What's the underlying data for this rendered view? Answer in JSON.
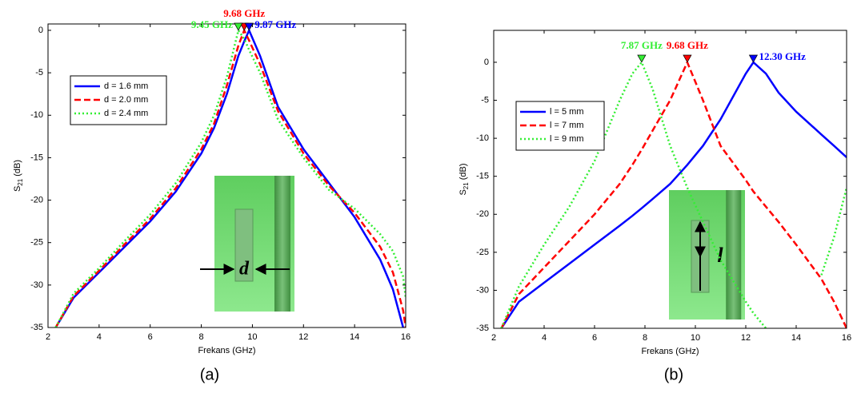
{
  "chart_data": [
    {
      "type": "line",
      "caption": "(a)",
      "xlabel": "Frekans (GHz)",
      "ylabel": "S21 (dB)",
      "x": [
        2.3,
        3,
        4,
        5,
        6,
        7,
        8,
        8.5,
        9,
        9.45,
        9.68,
        9.87,
        10.3,
        11,
        12,
        13,
        14,
        15,
        15.5,
        15.9,
        16
      ],
      "series": [
        {
          "name": "d = 1.6 mm",
          "color": "#0000ff",
          "style": "solid",
          "values": [
            -35,
            -31.5,
            -28.5,
            -25.5,
            -22.5,
            -19,
            -14.5,
            -11.5,
            -7.5,
            -3,
            -1.3,
            0,
            -3,
            -9,
            -14,
            -18,
            -22,
            -27,
            -30.5,
            -35,
            null
          ]
        },
        {
          "name": "d = 2.0 mm",
          "color": "#ff0000",
          "style": "dashed",
          "values": [
            -35,
            -31.3,
            -28.3,
            -25.2,
            -22.2,
            -18.6,
            -14,
            -11,
            -6.5,
            -1.8,
            0,
            -1.2,
            -4,
            -9.5,
            -14.5,
            -18.3,
            -21.5,
            -25.5,
            -28.5,
            -33,
            -35
          ]
        },
        {
          "name": "d = 2.4 mm",
          "color": "#33ee33",
          "style": "dotted",
          "values": [
            -35,
            -31,
            -28,
            -24.8,
            -21.7,
            -18,
            -13.2,
            -10,
            -5.5,
            0,
            -1,
            -2.3,
            -5,
            -10.5,
            -15,
            -18.8,
            -21,
            -24,
            -26,
            -29,
            -31.5
          ]
        }
      ],
      "markers": [
        {
          "x": 9.68,
          "y": 0,
          "label": "9.68 GHz",
          "color": "#ff0000"
        },
        {
          "x": 9.45,
          "y": 0,
          "label": "9.45 GHz",
          "color": "#33ee33"
        },
        {
          "x": 9.87,
          "y": 0,
          "label": "9.87 GHz",
          "color": "#0000ff"
        }
      ],
      "inset_label": "d",
      "xlim": [
        2,
        16
      ],
      "ylim": [
        -35,
        0.75
      ],
      "xticks": [
        2,
        4,
        6,
        8,
        10,
        12,
        14,
        16
      ],
      "yticks": [
        -35,
        -30,
        -25,
        -20,
        -15,
        -10,
        -5,
        0
      ]
    },
    {
      "type": "line",
      "caption": "(b)",
      "xlabel": "Frekans (GHz)",
      "ylabel": "S21 (dB)",
      "x": [
        2.3,
        3,
        4,
        5,
        6,
        7,
        7.5,
        7.87,
        8.3,
        9,
        9.68,
        10.3,
        11,
        12,
        12.3,
        12.8,
        13.3,
        14,
        15,
        15.5,
        16
      ],
      "series": [
        {
          "name": "l = 5 mm",
          "color": "#0000ff",
          "style": "solid",
          "values": [
            -35,
            -31.5,
            -29,
            -26.5,
            -24,
            -21.5,
            -20.2,
            -19.2,
            -18,
            -16,
            -13.5,
            -11,
            -7.5,
            -1.5,
            0,
            -1.5,
            -4,
            -6.5,
            -9.5,
            -11,
            -12.5
          ]
        },
        {
          "name": "l = 7 mm",
          "color": "#ff0000",
          "style": "dashed",
          "values": [
            -35,
            -30.5,
            -27,
            -23.5,
            -20,
            -16,
            -13.5,
            -11.5,
            -9,
            -5,
            0,
            -5,
            -11,
            -15.5,
            -17,
            -19,
            -21,
            -24,
            -28.5,
            -31.5,
            -35
          ]
        },
        {
          "name": "l = 9 mm",
          "color": "#33ee33",
          "style": "dotted",
          "values": [
            -35,
            -29.5,
            -24,
            -19,
            -13,
            -5,
            -1.5,
            0,
            -3.5,
            -11,
            -16.5,
            -21,
            -26,
            -31.5,
            -33,
            -35,
            null,
            null,
            -28,
            -23,
            -16.5
          ]
        }
      ],
      "markers": [
        {
          "x": 7.87,
          "y": 0,
          "label": "7.87 GHz",
          "color": "#33ee33"
        },
        {
          "x": 9.68,
          "y": 0,
          "label": "9.68 GHz",
          "color": "#ff0000"
        },
        {
          "x": 12.3,
          "y": 0,
          "label": "12.30 GHz",
          "color": "#0000ff"
        }
      ],
      "inset_label": "l",
      "xlim": [
        2,
        16
      ],
      "ylim": [
        -35,
        4.2
      ],
      "xticks": [
        2,
        4,
        6,
        8,
        10,
        12,
        14,
        16
      ],
      "yticks": [
        -35,
        -30,
        -25,
        -20,
        -15,
        -10,
        -5,
        0
      ]
    }
  ]
}
